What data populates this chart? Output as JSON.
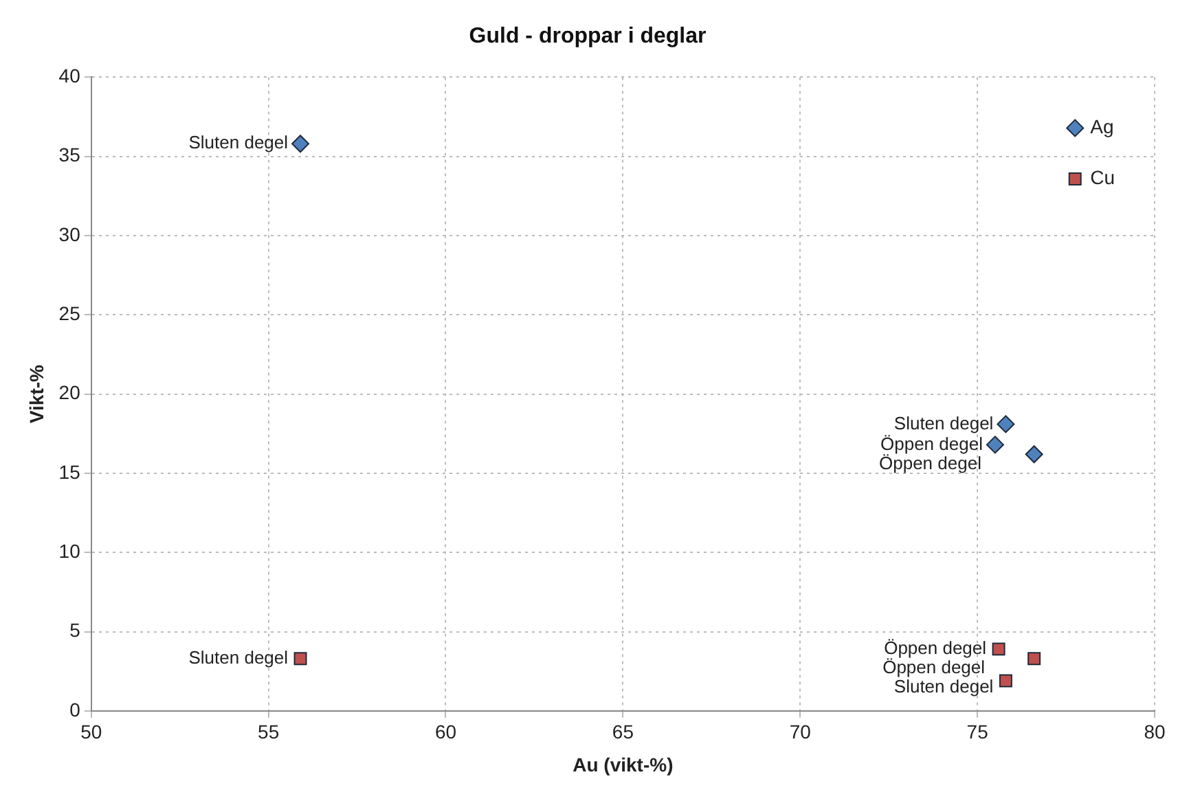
{
  "chart_data": {
    "type": "scatter",
    "title": "Guld - droppar i deglar",
    "xlabel": "Au (vikt-%)",
    "ylabel": "Vikt-%",
    "xlim": [
      50,
      80
    ],
    "xticks": [
      50,
      55,
      60,
      65,
      70,
      75,
      80
    ],
    "ylim": [
      0,
      40
    ],
    "yticks": [
      0,
      5,
      10,
      15,
      20,
      25,
      30,
      35,
      40
    ],
    "grid": true,
    "legend": "top right",
    "series": [
      {
        "name": "Ag",
        "color": "#4f81bd",
        "marker": "diamond",
        "x": [
          55.9,
          75.8,
          75.5,
          76.6
        ],
        "values": [
          35.8,
          18.1,
          16.8,
          16.2
        ]
      },
      {
        "name": "Cu",
        "color": "#c0504d",
        "marker": "square",
        "x": [
          55.9,
          75.6,
          76.6,
          75.8
        ],
        "values": [
          3.3,
          3.9,
          3.3,
          1.9
        ]
      }
    ],
    "annotations": [
      {
        "text": "Sluten degel",
        "x": 55.9,
        "y": 35.8
      },
      {
        "text": "Sluten degel",
        "x": 75.8,
        "y": 18.1
      },
      {
        "text": "Öppen degel",
        "x": 75.5,
        "y": 16.8
      },
      {
        "text": "Öppen degel",
        "x": 76.6,
        "y": 16.2
      },
      {
        "text": "Sluten degel",
        "x": 55.9,
        "y": 3.3
      },
      {
        "text": "Öppen degel",
        "x": 75.6,
        "y": 3.9
      },
      {
        "text": "Öppen degel",
        "x": 76.6,
        "y": 3.3
      },
      {
        "text": "Sluten degel",
        "x": 75.8,
        "y": 1.9
      }
    ]
  }
}
